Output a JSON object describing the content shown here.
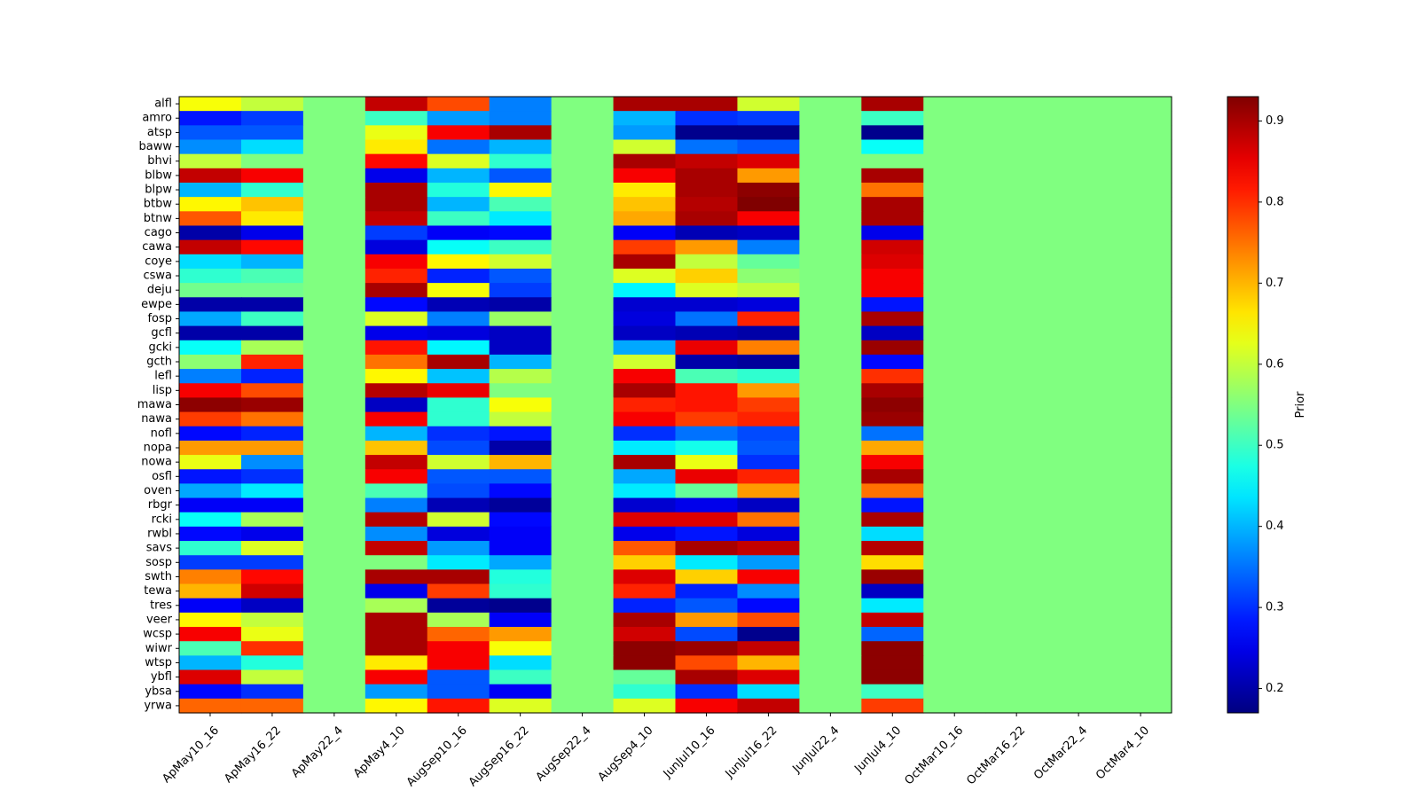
{
  "chart_data": {
    "type": "heatmap",
    "colormap": "jet",
    "x_categories": [
      "ApMay10_16",
      "ApMay16_22",
      "ApMay22_4",
      "ApMay4_10",
      "AugSep10_16",
      "AugSep16_22",
      "AugSep22_4",
      "AugSep4_10",
      "JunJul10_16",
      "JunJul16_22",
      "JunJul22_4",
      "JunJul4_10",
      "OctMar10_16",
      "OctMar16_22",
      "OctMar22_4",
      "OctMar4_10"
    ],
    "y_categories": [
      "alfl",
      "amro",
      "atsp",
      "baww",
      "bhvi",
      "blbw",
      "blpw",
      "btbw",
      "btnw",
      "cago",
      "cawa",
      "coye",
      "cswa",
      "deju",
      "ewpe",
      "fosp",
      "gcfl",
      "gcki",
      "gcth",
      "lefl",
      "lisp",
      "mawa",
      "nawa",
      "nofl",
      "nopa",
      "nowa",
      "osfl",
      "oven",
      "rbgr",
      "rcki",
      "rwbl",
      "savs",
      "sosp",
      "swth",
      "tewa",
      "tres",
      "veer",
      "wcsp",
      "wiwr",
      "wtsp",
      "ybfl",
      "ybsa",
      "yrwa"
    ],
    "values": [
      [
        0.64,
        0.6,
        0.55,
        0.88,
        0.78,
        0.36,
        0.55,
        0.9,
        0.9,
        0.61,
        0.55,
        0.9,
        0.55,
        0.55,
        0.55,
        0.55
      ],
      [
        0.28,
        0.31,
        0.55,
        0.5,
        0.38,
        0.36,
        0.55,
        0.4,
        0.3,
        0.31,
        0.55,
        0.5,
        0.55,
        0.55,
        0.55,
        0.55
      ],
      [
        0.33,
        0.33,
        0.55,
        0.63,
        0.84,
        0.9,
        0.55,
        0.38,
        0.18,
        0.18,
        0.55,
        0.18,
        0.55,
        0.55,
        0.55,
        0.55
      ],
      [
        0.37,
        0.43,
        0.55,
        0.66,
        0.35,
        0.4,
        0.55,
        0.61,
        0.35,
        0.33,
        0.55,
        0.46,
        0.55,
        0.55,
        0.55,
        0.55
      ],
      [
        0.6,
        0.55,
        0.55,
        0.83,
        0.62,
        0.49,
        0.55,
        0.9,
        0.88,
        0.86,
        0.55,
        0.55,
        0.55,
        0.55,
        0.55,
        0.55
      ],
      [
        0.88,
        0.84,
        0.55,
        0.25,
        0.4,
        0.33,
        0.55,
        0.84,
        0.9,
        0.72,
        0.55,
        0.9,
        0.55,
        0.55,
        0.55,
        0.55
      ],
      [
        0.4,
        0.49,
        0.55,
        0.9,
        0.48,
        0.65,
        0.55,
        0.66,
        0.9,
        0.92,
        0.55,
        0.75,
        0.55,
        0.55,
        0.55,
        0.55
      ],
      [
        0.65,
        0.69,
        0.55,
        0.9,
        0.4,
        0.51,
        0.55,
        0.69,
        0.89,
        0.93,
        0.55,
        0.9,
        0.55,
        0.55,
        0.55,
        0.55
      ],
      [
        0.77,
        0.66,
        0.55,
        0.88,
        0.5,
        0.44,
        0.55,
        0.71,
        0.9,
        0.84,
        0.55,
        0.9,
        0.55,
        0.55,
        0.55,
        0.55
      ],
      [
        0.2,
        0.25,
        0.55,
        0.31,
        0.26,
        0.27,
        0.55,
        0.26,
        0.21,
        0.22,
        0.55,
        0.25,
        0.55,
        0.55,
        0.55,
        0.55
      ],
      [
        0.88,
        0.83,
        0.55,
        0.24,
        0.46,
        0.5,
        0.55,
        0.79,
        0.72,
        0.36,
        0.55,
        0.87,
        0.55,
        0.55,
        0.55,
        0.55
      ],
      [
        0.43,
        0.4,
        0.55,
        0.84,
        0.65,
        0.61,
        0.55,
        0.9,
        0.6,
        0.53,
        0.55,
        0.86,
        0.55,
        0.55,
        0.55,
        0.55
      ],
      [
        0.49,
        0.51,
        0.55,
        0.81,
        0.29,
        0.33,
        0.55,
        0.62,
        0.68,
        0.56,
        0.55,
        0.84,
        0.55,
        0.55,
        0.55,
        0.55
      ],
      [
        0.54,
        0.54,
        0.55,
        0.9,
        0.64,
        0.31,
        0.55,
        0.45,
        0.62,
        0.6,
        0.55,
        0.84,
        0.55,
        0.55,
        0.55,
        0.55
      ],
      [
        0.2,
        0.2,
        0.55,
        0.27,
        0.21,
        0.2,
        0.55,
        0.23,
        0.23,
        0.24,
        0.55,
        0.28,
        0.55,
        0.55,
        0.55,
        0.55
      ],
      [
        0.39,
        0.5,
        0.55,
        0.62,
        0.36,
        0.57,
        0.55,
        0.24,
        0.35,
        0.81,
        0.55,
        0.9,
        0.55,
        0.55,
        0.55,
        0.55
      ],
      [
        0.2,
        0.2,
        0.55,
        0.25,
        0.24,
        0.22,
        0.55,
        0.22,
        0.21,
        0.2,
        0.55,
        0.22,
        0.55,
        0.55,
        0.55,
        0.55
      ],
      [
        0.46,
        0.58,
        0.55,
        0.82,
        0.45,
        0.22,
        0.55,
        0.39,
        0.85,
        0.74,
        0.55,
        0.91,
        0.55,
        0.55,
        0.55,
        0.55
      ],
      [
        0.56,
        0.81,
        0.55,
        0.75,
        0.9,
        0.4,
        0.55,
        0.61,
        0.2,
        0.19,
        0.55,
        0.27,
        0.55,
        0.55,
        0.55,
        0.55
      ],
      [
        0.36,
        0.29,
        0.55,
        0.65,
        0.41,
        0.59,
        0.55,
        0.84,
        0.51,
        0.49,
        0.55,
        0.8,
        0.55,
        0.55,
        0.55,
        0.55
      ],
      [
        0.84,
        0.78,
        0.55,
        0.89,
        0.85,
        0.55,
        0.55,
        0.9,
        0.82,
        0.72,
        0.55,
        0.9,
        0.55,
        0.55,
        0.55,
        0.55
      ],
      [
        0.92,
        0.91,
        0.55,
        0.22,
        0.49,
        0.64,
        0.55,
        0.81,
        0.82,
        0.79,
        0.55,
        0.92,
        0.55,
        0.55,
        0.55,
        0.55
      ],
      [
        0.79,
        0.75,
        0.55,
        0.84,
        0.49,
        0.6,
        0.55,
        0.84,
        0.79,
        0.81,
        0.55,
        0.91,
        0.55,
        0.55,
        0.55,
        0.55
      ],
      [
        0.27,
        0.29,
        0.55,
        0.4,
        0.3,
        0.28,
        0.55,
        0.3,
        0.35,
        0.32,
        0.55,
        0.35,
        0.55,
        0.55,
        0.55,
        0.55
      ],
      [
        0.72,
        0.72,
        0.55,
        0.69,
        0.32,
        0.2,
        0.55,
        0.44,
        0.47,
        0.33,
        0.55,
        0.71,
        0.55,
        0.55,
        0.55,
        0.55
      ],
      [
        0.63,
        0.37,
        0.55,
        0.88,
        0.61,
        0.7,
        0.55,
        0.9,
        0.63,
        0.3,
        0.55,
        0.84,
        0.55,
        0.55,
        0.55,
        0.55
      ],
      [
        0.28,
        0.3,
        0.55,
        0.84,
        0.33,
        0.33,
        0.55,
        0.39,
        0.85,
        0.81,
        0.55,
        0.9,
        0.55,
        0.55,
        0.55,
        0.55
      ],
      [
        0.39,
        0.44,
        0.55,
        0.51,
        0.32,
        0.27,
        0.55,
        0.44,
        0.53,
        0.72,
        0.55,
        0.75,
        0.55,
        0.55,
        0.55,
        0.55
      ],
      [
        0.26,
        0.26,
        0.55,
        0.36,
        0.21,
        0.19,
        0.55,
        0.23,
        0.25,
        0.22,
        0.55,
        0.28,
        0.55,
        0.55,
        0.55,
        0.55
      ],
      [
        0.46,
        0.58,
        0.55,
        0.89,
        0.61,
        0.27,
        0.55,
        0.86,
        0.86,
        0.75,
        0.55,
        0.9,
        0.55,
        0.55,
        0.55,
        0.55
      ],
      [
        0.27,
        0.25,
        0.55,
        0.37,
        0.24,
        0.26,
        0.55,
        0.25,
        0.28,
        0.24,
        0.55,
        0.43,
        0.55,
        0.55,
        0.55,
        0.55
      ],
      [
        0.49,
        0.62,
        0.55,
        0.88,
        0.38,
        0.26,
        0.55,
        0.77,
        0.9,
        0.88,
        0.55,
        0.89,
        0.55,
        0.55,
        0.55,
        0.55
      ],
      [
        0.31,
        0.31,
        0.55,
        0.55,
        0.44,
        0.39,
        0.55,
        0.68,
        0.44,
        0.38,
        0.55,
        0.67,
        0.55,
        0.55,
        0.55,
        0.55
      ],
      [
        0.74,
        0.83,
        0.55,
        0.9,
        0.9,
        0.48,
        0.55,
        0.86,
        0.68,
        0.84,
        0.55,
        0.91,
        0.55,
        0.55,
        0.55,
        0.55
      ],
      [
        0.7,
        0.87,
        0.55,
        0.25,
        0.79,
        0.49,
        0.55,
        0.81,
        0.29,
        0.37,
        0.55,
        0.22,
        0.55,
        0.55,
        0.55,
        0.55
      ],
      [
        0.26,
        0.22,
        0.55,
        0.58,
        0.19,
        0.18,
        0.55,
        0.29,
        0.33,
        0.27,
        0.55,
        0.44,
        0.55,
        0.55,
        0.55,
        0.55
      ],
      [
        0.65,
        0.6,
        0.55,
        0.9,
        0.58,
        0.26,
        0.55,
        0.9,
        0.72,
        0.78,
        0.55,
        0.88,
        0.55,
        0.55,
        0.55,
        0.55
      ],
      [
        0.84,
        0.63,
        0.55,
        0.9,
        0.76,
        0.72,
        0.55,
        0.87,
        0.32,
        0.18,
        0.55,
        0.34,
        0.55,
        0.55,
        0.55,
        0.55
      ],
      [
        0.51,
        0.8,
        0.55,
        0.9,
        0.84,
        0.64,
        0.55,
        0.92,
        0.91,
        0.88,
        0.55,
        0.92,
        0.55,
        0.55,
        0.55,
        0.55
      ],
      [
        0.4,
        0.48,
        0.55,
        0.66,
        0.84,
        0.43,
        0.55,
        0.92,
        0.78,
        0.7,
        0.55,
        0.92,
        0.55,
        0.55,
        0.55,
        0.55
      ],
      [
        0.86,
        0.6,
        0.55,
        0.84,
        0.33,
        0.5,
        0.55,
        0.53,
        0.9,
        0.86,
        0.55,
        0.92,
        0.55,
        0.55,
        0.55,
        0.55
      ],
      [
        0.27,
        0.3,
        0.55,
        0.38,
        0.33,
        0.26,
        0.55,
        0.49,
        0.3,
        0.43,
        0.55,
        0.5,
        0.55,
        0.55,
        0.55,
        0.55
      ],
      [
        0.76,
        0.76,
        0.55,
        0.65,
        0.82,
        0.62,
        0.55,
        0.62,
        0.84,
        0.88,
        0.55,
        0.79,
        0.55,
        0.55,
        0.55,
        0.55
      ]
    ],
    "vmin": 0.17,
    "vmax": 0.93,
    "colorbar": {
      "label": "Prior",
      "ticks": [
        0.2,
        0.3,
        0.4,
        0.5,
        0.6,
        0.7,
        0.8,
        0.9
      ],
      "tick_labels": [
        "0.2",
        "0.3",
        "0.4",
        "0.5",
        "0.6",
        "0.7",
        "0.8",
        "0.9"
      ]
    },
    "title": "",
    "xlabel": "",
    "ylabel": "",
    "grid": false,
    "xtick_rotation": 45
  }
}
